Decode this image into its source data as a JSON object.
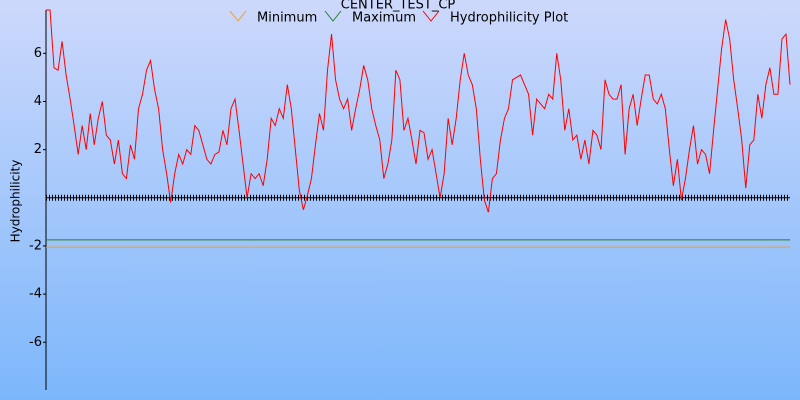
{
  "chart_data": {
    "type": "line",
    "title": "CENTER_TEST_CP",
    "y_label": "Hydrophilicity",
    "ylim": [
      -7.9,
      7.8
    ],
    "yticks": [
      -6,
      -4,
      -2,
      2,
      4,
      6
    ],
    "series": [
      {
        "name": "Minimum",
        "color": "#f0a020",
        "values": [
          -2.05
        ]
      },
      {
        "name": "Maximum",
        "color": "#208020",
        "values": [
          -1.75
        ]
      },
      {
        "name": "Hydrophilicity Plot",
        "color": "#ff0000",
        "values": [
          7.8,
          7.8,
          5.4,
          5.3,
          6.5,
          5.1,
          4.1,
          3.0,
          1.8,
          3.0,
          2.0,
          3.5,
          2.2,
          3.3,
          4.0,
          2.6,
          2.4,
          1.4,
          2.4,
          1.0,
          0.8,
          2.2,
          1.6,
          3.7,
          4.3,
          5.3,
          5.7,
          4.5,
          3.7,
          2.0,
          1.0,
          -0.2,
          1.0,
          1.8,
          1.4,
          2.0,
          1.8,
          3.0,
          2.8,
          2.2,
          1.6,
          1.4,
          1.8,
          1.9,
          2.8,
          2.2,
          3.7,
          4.1,
          2.8,
          1.4,
          0,
          1.0,
          0.8,
          1.0,
          0.5,
          1.6,
          3.3,
          3.0,
          3.7,
          3.3,
          4.7,
          3.7,
          2.0,
          0.3,
          -0.5,
          0.1,
          0.8,
          2.2,
          3.5,
          2.8,
          5.3,
          6.8,
          4.9,
          4.1,
          3.7,
          4.1,
          2.8,
          3.7,
          4.5,
          5.5,
          4.9,
          3.7,
          3.0,
          2.4,
          0.8,
          1.4,
          2.4,
          5.3,
          4.9,
          2.8,
          3.3,
          2.4,
          1.4,
          2.8,
          2.7,
          1.6,
          2.0,
          1.0,
          0,
          1.0,
          3.3,
          2.2,
          3.3,
          4.9,
          6.0,
          5.1,
          4.7,
          3.7,
          1.6,
          -0.1,
          -0.6,
          0.8,
          1.0,
          2.4,
          3.3,
          3.7,
          4.9,
          5.0,
          5.1,
          4.7,
          4.3,
          2.6,
          4.1,
          3.9,
          3.7,
          4.3,
          4.1,
          6.0,
          4.9,
          2.8,
          3.7,
          2.4,
          2.6,
          1.6,
          2.4,
          1.4,
          2.8,
          2.6,
          2.0,
          4.9,
          4.3,
          4.1,
          4.1,
          4.7,
          1.8,
          3.7,
          4.3,
          3.0,
          4.1,
          5.1,
          5.1,
          4.1,
          3.9,
          4.3,
          3.7,
          2.0,
          0.5,
          1.6,
          -0.1,
          0.8,
          2.0,
          3.0,
          1.4,
          2.0,
          1.8,
          1.0,
          2.8,
          4.5,
          6.2,
          7.4,
          6.6,
          4.9,
          3.7,
          2.4,
          0.4,
          2.2,
          2.4,
          4.3,
          3.3,
          4.7,
          5.4,
          4.3,
          4.3,
          6.6,
          6.8,
          4.7
        ]
      }
    ]
  }
}
